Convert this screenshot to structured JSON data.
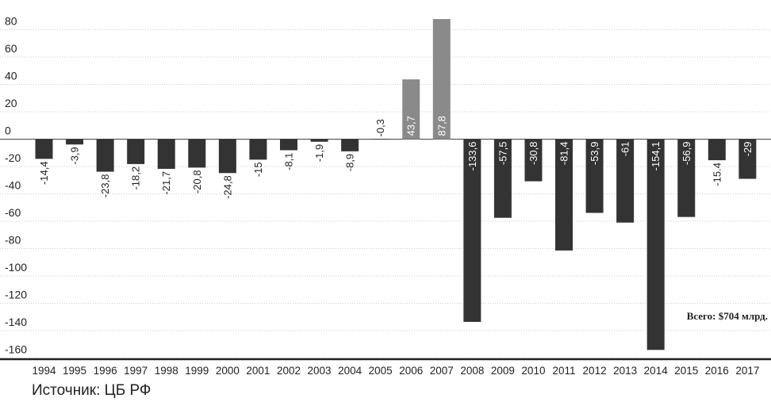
{
  "chart_data": {
    "type": "bar",
    "categories": [
      "1994",
      "1995",
      "1996",
      "1997",
      "1998",
      "1999",
      "2000",
      "2001",
      "2002",
      "2003",
      "2004",
      "2005",
      "2006",
      "2007",
      "2008",
      "2009",
      "2010",
      "2011",
      "2012",
      "2013",
      "2014",
      "2015",
      "2016",
      "2017"
    ],
    "values": [
      -14.4,
      -3.9,
      -23.8,
      -18.2,
      -21.7,
      -20.8,
      -24.8,
      -15,
      -8.1,
      -1.9,
      -8.9,
      -0.3,
      43.7,
      87.8,
      -133.6,
      -57.5,
      -30.8,
      -81.4,
      -53.9,
      -61,
      -154.1,
      -56.9,
      -15.4,
      -29
    ],
    "value_labels": [
      "-14,4",
      "-3,9",
      "-23,8",
      "-18,2",
      "-21,7",
      "-20,8",
      "-24,8",
      "-15",
      "-8,1",
      "-1,9",
      "-8,9",
      "-0,3",
      "43,7",
      "87,8",
      "-133,6",
      "-57,5",
      "-30,8",
      "-81,4",
      "-53,9",
      "-61",
      "-154,1",
      "-56,9",
      "-15.4",
      "-29"
    ],
    "y_ticks": [
      80,
      60,
      40,
      20,
      0,
      -20,
      -40,
      -60,
      -80,
      -100,
      -120,
      -140,
      -160
    ],
    "ylim": [
      -160,
      90
    ],
    "grid": true,
    "colors": {
      "negative": "#333333",
      "positive": "#8a8a8a",
      "grid": "#cccccc",
      "baseline": "#222222"
    },
    "annotation": "Всего: $704 млрд."
  },
  "source": "Источник: ЦБ РФ"
}
